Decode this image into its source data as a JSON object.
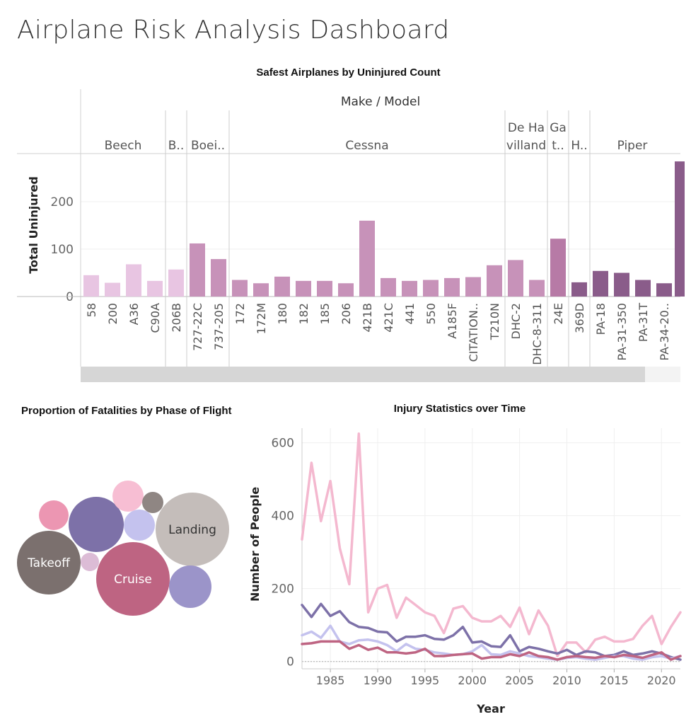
{
  "dashboard": {
    "title": "Airplane Risk Analysis Dashboard"
  },
  "bar_panel": {
    "title": "Safest Airplanes by Uninjured Count",
    "header_title": "Make / Model",
    "ylabel": "Total Uninjured"
  },
  "bubble_panel": {
    "title": "Proportion of Fatalities by Phase of Flight"
  },
  "line_panel": {
    "title": "Injury Statistics over Time",
    "xlabel": "Year",
    "ylabel": "Number of People"
  },
  "chart_data": [
    {
      "type": "bar",
      "title": "Safest Airplanes by Uninjured Count",
      "group_axis_label": "Make / Model",
      "ylabel": "Total Uninjured",
      "ylim": [
        0,
        290
      ],
      "yticks": [
        0,
        100,
        200
      ],
      "grid": true,
      "groups": [
        {
          "make": "Beech",
          "label_lines": [
            "Beech"
          ],
          "color": "#e8c5e2",
          "models": [
            "58",
            "200",
            "A36",
            "C90A"
          ],
          "values": [
            45,
            29,
            68,
            33
          ]
        },
        {
          "make": "B..",
          "label_lines": [
            "B.."
          ],
          "color": "#e8c5e2",
          "models": [
            "206B"
          ],
          "values": [
            57
          ]
        },
        {
          "make": "Boei..",
          "label_lines": [
            "Boei.."
          ],
          "color": "#c792b9",
          "models": [
            "727-22C",
            "737-205"
          ],
          "values": [
            112,
            79
          ]
        },
        {
          "make": "Cessna",
          "label_lines": [
            "Cessna"
          ],
          "color": "#c792b9",
          "models": [
            "172",
            "172M",
            "180",
            "182",
            "185",
            "206",
            "421B",
            "421C",
            "441",
            "550",
            "A185F",
            "CITATION..",
            "T210N"
          ],
          "values": [
            35,
            28,
            42,
            33,
            33,
            28,
            160,
            39,
            33,
            35,
            39,
            41,
            66
          ]
        },
        {
          "make": "De Ha villand",
          "label_lines": [
            "De Ha",
            "villand"
          ],
          "color": "#c792b9",
          "models": [
            "DHC-2",
            "DHC-8-311"
          ],
          "values": [
            77,
            35
          ]
        },
        {
          "make": "Ga t..",
          "label_lines": [
            "Ga",
            "t.."
          ],
          "color": "#b77aa6",
          "models": [
            "24E"
          ],
          "values": [
            122
          ]
        },
        {
          "make": "H..",
          "label_lines": [
            "H.."
          ],
          "color": "#8a5c8a",
          "models": [
            "369D"
          ],
          "values": [
            30
          ]
        },
        {
          "make": "Piper",
          "label_lines": [
            "Piper"
          ],
          "color": "#8a5c8a",
          "models": [
            "PA-18",
            "PA-31-350",
            "PA-31T",
            "PA-34-20.."
          ],
          "values": [
            54,
            50,
            35,
            28
          ]
        }
      ],
      "clipped_bar": {
        "value": 285,
        "color": "#8a5c8a"
      }
    },
    {
      "type": "bubble",
      "title": "Proportion of Fatalities by Phase of Flight",
      "bubbles": [
        {
          "label": "Landing",
          "color": "#c4bdba",
          "size": 52
        },
        {
          "label": "Cruise",
          "color": "#be6482",
          "size": 52
        },
        {
          "label": "Takeoff",
          "color": "#7b706e",
          "size": 45
        },
        {
          "label": "",
          "color": "#7d71a8",
          "size": 39
        },
        {
          "label": "",
          "color": "#9b94c9",
          "size": 30
        },
        {
          "label": "",
          "color": "#c4c2ee",
          "size": 22
        },
        {
          "label": "",
          "color": "#f7bed3",
          "size": 22
        },
        {
          "label": "",
          "color": "#ec96b2",
          "size": 21
        },
        {
          "label": "",
          "color": "#8f8683",
          "size": 15
        },
        {
          "label": "",
          "color": "#dcbcd6",
          "size": 13
        }
      ]
    },
    {
      "type": "line",
      "title": "Injury Statistics over Time",
      "xlabel": "Year",
      "ylabel": "Number of People",
      "xlim": [
        1982,
        2022
      ],
      "ylim": [
        -20,
        640
      ],
      "xticks": [
        1985,
        1990,
        1995,
        2000,
        2005,
        2010,
        2015,
        2020
      ],
      "yticks": [
        0,
        200,
        400,
        600
      ],
      "grid": true,
      "x": [
        1982,
        1983,
        1984,
        1985,
        1986,
        1987,
        1988,
        1989,
        1990,
        1991,
        1992,
        1993,
        1994,
        1995,
        1996,
        1997,
        1998,
        1999,
        2000,
        2001,
        2002,
        2003,
        2004,
        2005,
        2006,
        2007,
        2008,
        2009,
        2010,
        2011,
        2012,
        2013,
        2014,
        2015,
        2016,
        2017,
        2018,
        2019,
        2020,
        2021,
        2022
      ],
      "series": [
        {
          "color": "#f4b8cf",
          "values": [
            335,
            545,
            385,
            495,
            310,
            212,
            625,
            135,
            200,
            210,
            120,
            175,
            155,
            135,
            125,
            78,
            145,
            152,
            120,
            110,
            110,
            125,
            95,
            148,
            75,
            140,
            98,
            15,
            52,
            52,
            25,
            60,
            68,
            55,
            55,
            62,
            98,
            125,
            48,
            95,
            135
          ]
        },
        {
          "color": "#7d71a8",
          "values": [
            155,
            122,
            158,
            125,
            138,
            108,
            95,
            92,
            82,
            80,
            55,
            68,
            68,
            72,
            62,
            60,
            72,
            95,
            52,
            55,
            42,
            40,
            72,
            28,
            40,
            35,
            28,
            22,
            32,
            18,
            28,
            25,
            15,
            18,
            28,
            18,
            22,
            28,
            22,
            12,
            5
          ]
        },
        {
          "color": "#c4c2ee",
          "values": [
            72,
            82,
            65,
            98,
            55,
            48,
            58,
            60,
            55,
            45,
            28,
            48,
            35,
            32,
            25,
            22,
            18,
            20,
            28,
            45,
            20,
            18,
            28,
            22,
            15,
            12,
            8,
            5,
            10,
            12,
            8,
            5,
            10,
            15,
            15,
            8,
            5,
            12,
            15,
            8,
            15
          ]
        },
        {
          "color": "#be6482",
          "values": [
            48,
            50,
            55,
            55,
            55,
            35,
            45,
            32,
            38,
            25,
            25,
            22,
            25,
            35,
            15,
            15,
            18,
            20,
            22,
            8,
            12,
            12,
            20,
            15,
            25,
            15,
            12,
            5,
            12,
            15,
            12,
            10,
            15,
            12,
            18,
            15,
            10,
            18,
            25,
            5,
            15
          ]
        }
      ]
    }
  ]
}
